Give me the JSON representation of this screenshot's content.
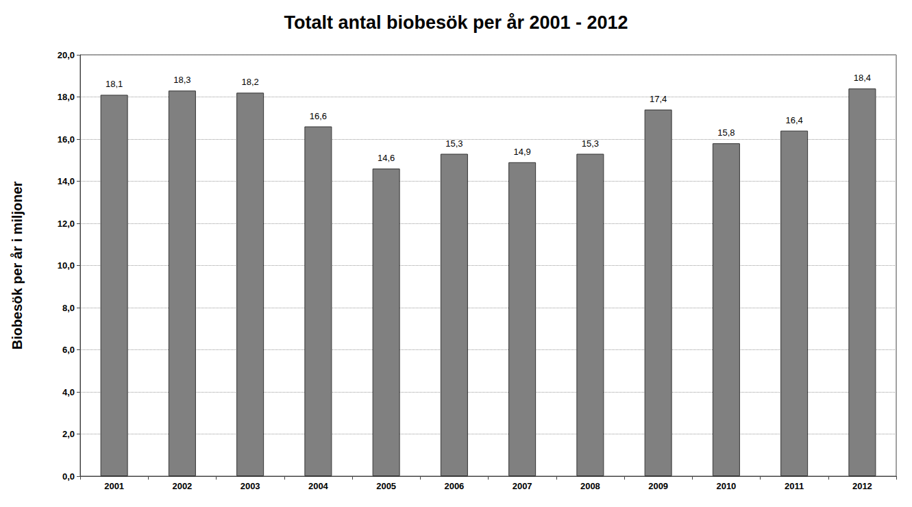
{
  "chart_data": {
    "type": "bar",
    "title": "Totalt antal biobesök per år 2001 - 2012",
    "y_label": "Biobesök per år i miljoner",
    "categories": [
      "2001",
      "2002",
      "2003",
      "2004",
      "2005",
      "2006",
      "2007",
      "2008",
      "2009",
      "2010",
      "2011",
      "2012"
    ],
    "values": [
      18.1,
      18.3,
      18.2,
      16.6,
      14.6,
      15.3,
      14.9,
      15.3,
      17.4,
      15.8,
      16.4,
      18.4
    ],
    "value_labels": [
      "18,1",
      "18,3",
      "18,2",
      "16,6",
      "14,6",
      "15,3",
      "14,9",
      "15,3",
      "17,4",
      "15,8",
      "16,4",
      "18,4"
    ],
    "color": "#808080",
    "ylim": [
      0,
      20
    ],
    "yticks": [
      {
        "value": 0,
        "label": "0,0"
      },
      {
        "value": 2,
        "label": "2,0"
      },
      {
        "value": 4,
        "label": "4,0"
      },
      {
        "value": 6,
        "label": "6,0"
      },
      {
        "value": 8,
        "label": "8,0"
      },
      {
        "value": 10,
        "label": "10,0"
      },
      {
        "value": 12,
        "label": "12,0"
      },
      {
        "value": 14,
        "label": "14,0"
      },
      {
        "value": 16,
        "label": "16,0"
      },
      {
        "value": 18,
        "label": "18,0"
      },
      {
        "value": 20,
        "label": "20,0"
      }
    ],
    "grid": true,
    "data_labels": true
  }
}
